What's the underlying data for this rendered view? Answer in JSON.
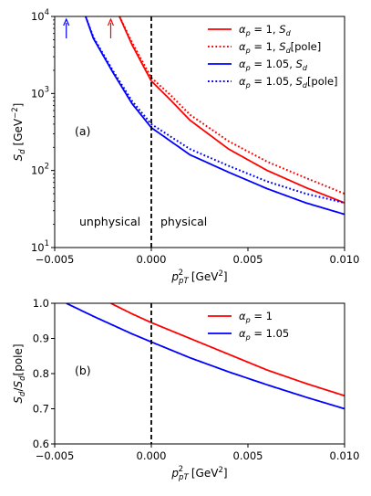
{
  "chart_data": [
    {
      "panel": "top",
      "type": "line",
      "panel_label": "(a)",
      "xlabel": "p_pT^2 [GeV^2]",
      "ylabel": "S_d [GeV^-2]",
      "xlim": [
        -0.005,
        0.01
      ],
      "ylim": [
        10,
        10000
      ],
      "yscale": "log",
      "grid": false,
      "legend_position": "top-right",
      "x_ticks": [
        -0.005,
        0.0,
        0.005,
        0.01
      ],
      "x_tick_labels": [
        "−0.005",
        "0.000",
        "0.005",
        "0.010"
      ],
      "y_ticks": [
        10,
        100,
        1000,
        10000
      ],
      "y_tick_labels": [
        "10",
        "10",
        "10",
        "10"
      ],
      "y_tick_exponents": [
        "1",
        "2",
        "3",
        "4"
      ],
      "region_labels": [
        "unphysical",
        "physical"
      ],
      "vline_x": 0.0,
      "pole_arrows": [
        {
          "x": -0.0044,
          "color": "#0000ff"
        },
        {
          "x": -0.0021,
          "color": "#ff0000"
        }
      ],
      "series": [
        {
          "name": "αp = 1, Sd",
          "legend_parts": {
            "sym": "α",
            "sub": "p",
            "eq": " = 1, ",
            "s": "S",
            "ssub": "d",
            "suffix": ""
          },
          "color": "#ff0000",
          "style": "solid",
          "x": [
            -0.00165,
            -0.001,
            0.0,
            0.001,
            0.002,
            0.004,
            0.006,
            0.008,
            0.01
          ],
          "y": [
            10000,
            4300,
            1450,
            820,
            450,
            190,
            100,
            60,
            38
          ]
        },
        {
          "name": "αp = 1, Sd[pole]",
          "legend_parts": {
            "sym": "α",
            "sub": "p",
            "eq": " = 1, ",
            "s": "S",
            "ssub": "d",
            "suffix": "[pole]"
          },
          "color": "#ff0000",
          "style": "dotted",
          "x": [
            -0.00165,
            -0.001,
            0.0,
            0.001,
            0.002,
            0.004,
            0.006,
            0.008,
            0.01
          ],
          "y": [
            10000,
            4600,
            1600,
            950,
            530,
            240,
            130,
            80,
            50
          ]
        },
        {
          "name": "αp = 1.05, Sd",
          "legend_parts": {
            "sym": "α",
            "sub": "p",
            "eq": " = 1.05, ",
            "s": "S",
            "ssub": "d",
            "suffix": ""
          },
          "color": "#0000ff",
          "style": "solid",
          "x": [
            -0.0034,
            -0.003,
            -0.002,
            -0.001,
            0.0,
            0.002,
            0.004,
            0.006,
            0.008,
            0.01
          ],
          "y": [
            10000,
            5200,
            1900,
            740,
            360,
            160,
            95,
            58,
            38,
            27
          ]
        },
        {
          "name": "αp = 1.05, Sd[pole]",
          "legend_parts": {
            "sym": "α",
            "sub": "p",
            "eq": " = 1.05, ",
            "s": "S",
            "ssub": "d",
            "suffix": "[pole]"
          },
          "color": "#0000ff",
          "style": "dotted",
          "x": [
            -0.0034,
            -0.003,
            -0.002,
            -0.001,
            0.0,
            0.002,
            0.004,
            0.006,
            0.008,
            0.01
          ],
          "y": [
            10000,
            5400,
            2000,
            800,
            400,
            190,
            115,
            72,
            50,
            38
          ]
        }
      ]
    },
    {
      "panel": "bottom",
      "type": "line",
      "panel_label": "(b)",
      "xlabel": "p_pT^2 [GeV^2]",
      "ylabel": "S_d/S_d[pole]",
      "xlim": [
        -0.005,
        0.01
      ],
      "ylim": [
        0.6,
        1.0
      ],
      "grid": false,
      "legend_position": "top-right",
      "x_ticks": [
        -0.005,
        0.0,
        0.005,
        0.01
      ],
      "x_tick_labels": [
        "−0.005",
        "0.000",
        "0.005",
        "0.010"
      ],
      "y_ticks": [
        0.6,
        0.7,
        0.8,
        0.9,
        1.0
      ],
      "y_tick_labels": [
        "0.6",
        "0.7",
        "0.8",
        "0.9",
        "1.0"
      ],
      "vline_x": 0.0,
      "series": [
        {
          "name": "αp = 1",
          "legend_parts": {
            "sym": "α",
            "sub": "p",
            "eq": " = 1"
          },
          "color": "#ff0000",
          "style": "solid",
          "x": [
            -0.0021,
            -0.001,
            0.0,
            0.002,
            0.004,
            0.006,
            0.008,
            0.01
          ],
          "y": [
            1.0,
            0.97,
            0.945,
            0.9,
            0.855,
            0.81,
            0.772,
            0.737
          ]
        },
        {
          "name": "αp = 1.05",
          "legend_parts": {
            "sym": "α",
            "sub": "p",
            "eq": " = 1.05"
          },
          "color": "#0000ff",
          "style": "solid",
          "x": [
            -0.0044,
            -0.003,
            -0.002,
            -0.001,
            0.0,
            0.002,
            0.004,
            0.006,
            0.008,
            0.01
          ],
          "y": [
            1.0,
            0.963,
            0.938,
            0.913,
            0.89,
            0.845,
            0.805,
            0.768,
            0.733,
            0.7
          ]
        }
      ]
    }
  ]
}
